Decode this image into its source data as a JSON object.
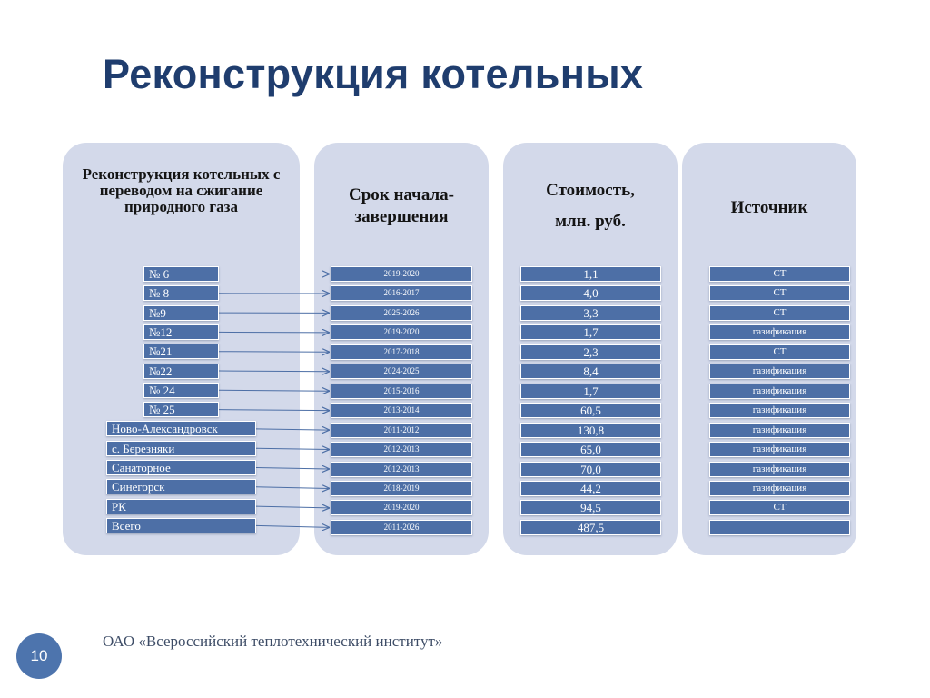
{
  "title": "Реконструкция котельных",
  "columns": {
    "objects_header": "Реконструкция котельных с переводом на сжигание природного газа",
    "period_header": "Срок начала-завершения",
    "cost_header_line1": "Стоимость,",
    "cost_header_line2": "млн. руб.",
    "source_header": "Источник"
  },
  "rows": [
    {
      "label": "№ 6",
      "period": "2019-2020",
      "cost": "1,1",
      "source": "СТ"
    },
    {
      "label": "№ 8",
      "period": "2016-2017",
      "cost": "4,0",
      "source": "СТ"
    },
    {
      "label": "№9",
      "period": "2025-2026",
      "cost": "3,3",
      "source": "СТ"
    },
    {
      "label": "№12",
      "period": "2019-2020",
      "cost": "1,7",
      "source": "газификация"
    },
    {
      "label": "№21",
      "period": "2017-2018",
      "cost": "2,3",
      "source": "СТ"
    },
    {
      "label": "№22",
      "period": "2024-2025",
      "cost": "8,4",
      "source": "газификация"
    },
    {
      "label": "№ 24",
      "period": "2015-2016",
      "cost": "1,7",
      "source": "газификация"
    },
    {
      "label": "№ 25",
      "period": "2013-2014",
      "cost": "60,5",
      "source": "газификация"
    },
    {
      "label": "Ново-Александровск",
      "period": "2011-2012",
      "cost": "130,8",
      "source": "газификация"
    },
    {
      "label": "с. Березняки",
      "period": "2012-2013",
      "cost": "65,0",
      "source": "газификация"
    },
    {
      "label": "Санаторное",
      "period": "2012-2013",
      "cost": "70,0",
      "source": "газификация"
    },
    {
      "label": "Синегорск",
      "period": "2018-2019",
      "cost": "44,2",
      "source": "газификация"
    },
    {
      "label": "РК",
      "period": "2019-2020",
      "cost": "94,5",
      "source": "СТ"
    },
    {
      "label": "Всего",
      "period": "2011-2026",
      "cost": "487,5",
      "source": ""
    }
  ],
  "footer": {
    "page_number": "10",
    "org": "ОАО «Всероссийский теплотехнический институт»"
  }
}
